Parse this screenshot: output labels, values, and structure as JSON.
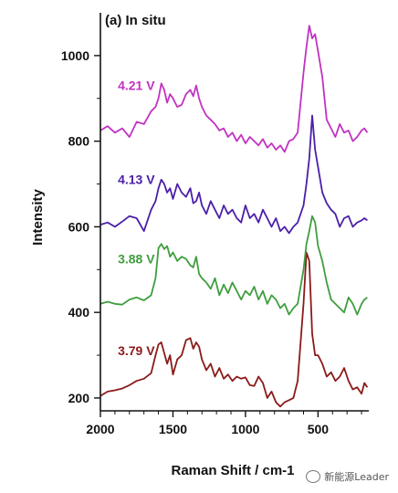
{
  "chart_data": {
    "type": "line",
    "title": "(a) In situ",
    "xlabel": "Raman Shift / cm-1",
    "ylabel": "Intensity",
    "xlim": [
      2000,
      150
    ],
    "ylim": [
      170,
      1100
    ],
    "x_reversed": true,
    "xticks": [
      2000,
      1500,
      1000,
      500
    ],
    "yticks": [
      200,
      400,
      600,
      800,
      1000
    ],
    "grid": false,
    "series": [
      {
        "name": "3.79 V",
        "color": "#8B1A1A",
        "x": [
          2000,
          1950,
          1900,
          1850,
          1800,
          1750,
          1700,
          1650,
          1620,
          1600,
          1580,
          1560,
          1540,
          1520,
          1500,
          1470,
          1440,
          1410,
          1380,
          1360,
          1340,
          1320,
          1300,
          1270,
          1240,
          1210,
          1180,
          1150,
          1120,
          1090,
          1060,
          1030,
          1000,
          970,
          940,
          910,
          880,
          850,
          820,
          790,
          760,
          730,
          700,
          670,
          640,
          620,
          600,
          580,
          560,
          540,
          520,
          500,
          470,
          440,
          410,
          380,
          350,
          320,
          290,
          260,
          230,
          200,
          180,
          160
        ],
        "y": [
          205,
          215,
          218,
          222,
          230,
          240,
          245,
          258,
          300,
          325,
          330,
          305,
          280,
          300,
          255,
          290,
          300,
          335,
          340,
          315,
          330,
          320,
          290,
          265,
          280,
          250,
          270,
          245,
          255,
          240,
          250,
          245,
          248,
          230,
          228,
          250,
          235,
          200,
          215,
          190,
          180,
          190,
          195,
          200,
          240,
          330,
          420,
          540,
          520,
          350,
          300,
          300,
          280,
          250,
          260,
          240,
          250,
          270,
          240,
          220,
          225,
          210,
          235,
          225
        ]
      },
      {
        "name": "3.88 V",
        "color": "#3E9E3E",
        "x": [
          2000,
          1950,
          1900,
          1850,
          1800,
          1750,
          1700,
          1650,
          1620,
          1600,
          1580,
          1560,
          1540,
          1520,
          1500,
          1470,
          1440,
          1410,
          1380,
          1360,
          1340,
          1320,
          1300,
          1270,
          1240,
          1210,
          1180,
          1150,
          1120,
          1090,
          1060,
          1030,
          1000,
          970,
          940,
          910,
          880,
          850,
          820,
          790,
          760,
          730,
          700,
          670,
          640,
          600,
          580,
          560,
          540,
          520,
          500,
          470,
          440,
          410,
          380,
          350,
          320,
          290,
          260,
          230,
          200,
          180,
          160
        ],
        "y": [
          420,
          425,
          420,
          418,
          430,
          435,
          428,
          440,
          480,
          550,
          560,
          548,
          555,
          530,
          540,
          520,
          530,
          525,
          510,
          505,
          530,
          490,
          480,
          470,
          455,
          480,
          440,
          465,
          445,
          470,
          450,
          430,
          450,
          440,
          460,
          430,
          450,
          420,
          440,
          430,
          410,
          420,
          395,
          410,
          420,
          500,
          560,
          590,
          625,
          610,
          555,
          520,
          470,
          430,
          420,
          410,
          400,
          435,
          420,
          395,
          420,
          430,
          435
        ]
      },
      {
        "name": "4.13 V",
        "color": "#4B1FA8",
        "x": [
          2000,
          1950,
          1900,
          1850,
          1800,
          1750,
          1700,
          1650,
          1620,
          1600,
          1580,
          1560,
          1540,
          1520,
          1500,
          1470,
          1440,
          1410,
          1380,
          1360,
          1340,
          1320,
          1300,
          1270,
          1240,
          1210,
          1180,
          1150,
          1120,
          1090,
          1060,
          1030,
          1000,
          970,
          940,
          910,
          880,
          850,
          820,
          790,
          760,
          730,
          700,
          670,
          640,
          600,
          580,
          560,
          540,
          520,
          500,
          470,
          440,
          410,
          380,
          350,
          320,
          290,
          260,
          230,
          200,
          180,
          160
        ],
        "y": [
          605,
          610,
          600,
          612,
          625,
          620,
          590,
          640,
          660,
          690,
          710,
          700,
          680,
          690,
          665,
          700,
          680,
          670,
          690,
          655,
          660,
          680,
          650,
          630,
          660,
          640,
          620,
          650,
          630,
          640,
          620,
          610,
          650,
          620,
          630,
          610,
          640,
          620,
          600,
          620,
          590,
          600,
          585,
          600,
          610,
          650,
          700,
          760,
          860,
          780,
          740,
          680,
          655,
          640,
          630,
          600,
          620,
          625,
          600,
          610,
          615,
          620,
          615
        ]
      },
      {
        "name": "4.21 V",
        "color": "#C232C2",
        "x": [
          2000,
          1950,
          1900,
          1850,
          1800,
          1750,
          1700,
          1650,
          1620,
          1600,
          1580,
          1560,
          1540,
          1520,
          1500,
          1470,
          1440,
          1410,
          1380,
          1360,
          1340,
          1320,
          1300,
          1270,
          1240,
          1210,
          1180,
          1150,
          1120,
          1090,
          1060,
          1030,
          1000,
          970,
          940,
          910,
          880,
          850,
          820,
          790,
          760,
          730,
          700,
          670,
          640,
          600,
          580,
          560,
          540,
          520,
          500,
          470,
          440,
          410,
          380,
          350,
          320,
          290,
          260,
          230,
          200,
          180,
          160
        ],
        "y": [
          825,
          835,
          820,
          830,
          810,
          845,
          840,
          870,
          880,
          900,
          935,
          920,
          890,
          910,
          900,
          880,
          885,
          910,
          920,
          905,
          930,
          900,
          880,
          860,
          850,
          840,
          825,
          830,
          810,
          820,
          800,
          815,
          795,
          810,
          800,
          790,
          805,
          785,
          795,
          780,
          790,
          775,
          800,
          805,
          820,
          960,
          1020,
          1070,
          1040,
          1050,
          1010,
          950,
          850,
          830,
          810,
          840,
          820,
          825,
          800,
          810,
          825,
          830,
          820
        ]
      }
    ]
  },
  "watermark_text": "新能源Leader"
}
